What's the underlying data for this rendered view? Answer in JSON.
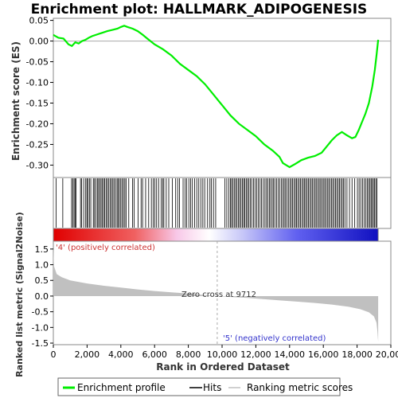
{
  "chart_data": {
    "type": "line",
    "title": "Enrichment plot: HALLMARK_ADIPOGENESIS",
    "colors": {
      "es_line": "#00ee00",
      "hits": "#000000",
      "metric_fill": "#c0c0c0",
      "positive": "#ff0000",
      "negative": "#0000ff",
      "neg_label": "#3333cc",
      "pos_label": "#cc3333"
    },
    "x_axis": {
      "label": "Rank in Ordered Dataset",
      "range": [
        0,
        20000
      ],
      "ticks": [
        0,
        2000,
        4000,
        6000,
        8000,
        10000,
        12000,
        14000,
        16000,
        18000,
        20000
      ],
      "tick_labels": [
        "0",
        "2,000",
        "4,000",
        "6,000",
        "8,000",
        "10,000",
        "12,000",
        "14,000",
        "16,000",
        "18,000",
        "20,000"
      ]
    },
    "es_panel": {
      "ylabel": "Enrichment score (ES)",
      "ylim": [
        -0.33,
        0.055
      ],
      "ticks": [
        0.05,
        0.0,
        -0.05,
        -0.1,
        -0.15,
        -0.2,
        -0.25,
        -0.3
      ],
      "tick_labels": [
        "0.05",
        "0.00",
        "-0.05",
        "-0.10",
        "-0.15",
        "-0.20",
        "-0.25",
        "-0.30"
      ],
      "series": [
        {
          "name": "Enrichment profile",
          "points": [
            [
              0,
              0.015
            ],
            [
              300,
              0.008
            ],
            [
              600,
              0.006
            ],
            [
              900,
              -0.008
            ],
            [
              1100,
              -0.012
            ],
            [
              1300,
              -0.003
            ],
            [
              1500,
              -0.006
            ],
            [
              1700,
              0.0
            ],
            [
              1900,
              0.003
            ],
            [
              2100,
              0.008
            ],
            [
              2300,
              0.012
            ],
            [
              2600,
              0.016
            ],
            [
              2900,
              0.02
            ],
            [
              3200,
              0.024
            ],
            [
              3500,
              0.027
            ],
            [
              3800,
              0.03
            ],
            [
              4000,
              0.034
            ],
            [
              4200,
              0.037
            ],
            [
              4400,
              0.034
            ],
            [
              4700,
              0.03
            ],
            [
              5000,
              0.024
            ],
            [
              5300,
              0.015
            ],
            [
              5600,
              0.005
            ],
            [
              6000,
              -0.008
            ],
            [
              6500,
              -0.02
            ],
            [
              7000,
              -0.035
            ],
            [
              7500,
              -0.055
            ],
            [
              8000,
              -0.07
            ],
            [
              8500,
              -0.085
            ],
            [
              9000,
              -0.105
            ],
            [
              9500,
              -0.13
            ],
            [
              10000,
              -0.155
            ],
            [
              10500,
              -0.18
            ],
            [
              11000,
              -0.2
            ],
            [
              11500,
              -0.215
            ],
            [
              12000,
              -0.23
            ],
            [
              12500,
              -0.25
            ],
            [
              13000,
              -0.265
            ],
            [
              13400,
              -0.28
            ],
            [
              13600,
              -0.295
            ],
            [
              13800,
              -0.3
            ],
            [
              14000,
              -0.305
            ],
            [
              14300,
              -0.298
            ],
            [
              14700,
              -0.288
            ],
            [
              15100,
              -0.282
            ],
            [
              15500,
              -0.278
            ],
            [
              15900,
              -0.27
            ],
            [
              16200,
              -0.255
            ],
            [
              16500,
              -0.24
            ],
            [
              16800,
              -0.228
            ],
            [
              17100,
              -0.22
            ],
            [
              17400,
              -0.228
            ],
            [
              17700,
              -0.235
            ],
            [
              17900,
              -0.232
            ],
            [
              18100,
              -0.215
            ],
            [
              18300,
              -0.195
            ],
            [
              18500,
              -0.175
            ],
            [
              18700,
              -0.15
            ],
            [
              18900,
              -0.11
            ],
            [
              19050,
              -0.07
            ],
            [
              19150,
              -0.035
            ],
            [
              19250,
              0.003
            ]
          ]
        }
      ]
    },
    "hits_panel": {
      "label": "Hits",
      "hit_ranks": [
        170,
        560,
        1080,
        1150,
        1230,
        1290,
        1350,
        1610,
        1680,
        1800,
        1920,
        1990,
        2050,
        2140,
        2220,
        2370,
        2440,
        2520,
        2610,
        2680,
        2750,
        2830,
        2900,
        2980,
        3050,
        3130,
        3210,
        3290,
        3380,
        3450,
        3530,
        3600,
        3690,
        3780,
        3850,
        3920,
        4000,
        4080,
        4160,
        4240,
        4310,
        4470,
        4690,
        4790,
        5020,
        5200,
        5290,
        5470,
        5650,
        5810,
        5920,
        6010,
        6120,
        6240,
        6390,
        6480,
        6550,
        6690,
        6840,
        7050,
        7250,
        7370,
        7480,
        7690,
        7810,
        7900,
        8030,
        8140,
        8240,
        8370,
        8500,
        8620,
        8740,
        8860,
        8970,
        9140,
        9280,
        9370,
        9490,
        9620,
        10170,
        10280,
        10400,
        10490,
        10560,
        10640,
        10720,
        10800,
        10880,
        10960,
        11040,
        11120,
        11200,
        11280,
        11350,
        11430,
        11510,
        11590,
        11670,
        11760,
        11860,
        11950,
        12050,
        12150,
        12250,
        12340,
        12440,
        12540,
        12630,
        12710,
        12800,
        12880,
        12970,
        13050,
        13130,
        13230,
        13330,
        13420,
        13520,
        13600,
        13680,
        13760,
        13840,
        13930,
        14020,
        14100,
        14180,
        14260,
        14340,
        14410,
        14490,
        14570,
        14650,
        14730,
        14810,
        14890,
        14960,
        15040,
        15120,
        15200,
        15280,
        15360,
        15440,
        15520,
        15600,
        15680,
        15760,
        15840,
        15920,
        16000,
        16080,
        16160,
        16240,
        16320,
        16400,
        16480,
        16560,
        16640,
        16720,
        16800,
        16880,
        16960,
        17040,
        17120,
        17200,
        17280,
        17400,
        17550,
        17700,
        17860,
        18020,
        18120,
        18220,
        18320,
        18420,
        18520,
        18600,
        18680,
        18760,
        18830,
        18900,
        18970,
        19040,
        19110,
        19180
      ]
    },
    "metric_panel": {
      "ylabel": "Ranked list metric (Signal2Noise)",
      "ylim": [
        -1.55,
        1.75
      ],
      "ticks": [
        1.5,
        1.0,
        0.5,
        0.0,
        -0.5,
        -1.0,
        -1.5
      ],
      "tick_labels": [
        "1.5",
        "1.0",
        "0.5",
        "0.0",
        "-0.5",
        "-1.0",
        "-1.5"
      ],
      "points": [
        [
          0,
          1.55
        ],
        [
          40,
          0.95
        ],
        [
          200,
          0.7
        ],
        [
          500,
          0.6
        ],
        [
          1000,
          0.5
        ],
        [
          2000,
          0.4
        ],
        [
          3000,
          0.33
        ],
        [
          4000,
          0.27
        ],
        [
          5000,
          0.21
        ],
        [
          6000,
          0.16
        ],
        [
          7000,
          0.12
        ],
        [
          8000,
          0.08
        ],
        [
          9000,
          0.03
        ],
        [
          9712,
          0.0
        ],
        [
          10500,
          -0.03
        ],
        [
          11500,
          -0.06
        ],
        [
          12500,
          -0.1
        ],
        [
          13500,
          -0.14
        ],
        [
          14500,
          -0.18
        ],
        [
          15500,
          -0.22
        ],
        [
          16500,
          -0.27
        ],
        [
          17500,
          -0.34
        ],
        [
          18200,
          -0.42
        ],
        [
          18700,
          -0.52
        ],
        [
          19000,
          -0.65
        ],
        [
          19150,
          -0.85
        ],
        [
          19200,
          -1.1
        ],
        [
          19250,
          -1.45
        ]
      ],
      "zero_cross_label": "Zero cross at 9712",
      "zero_cross_rank": 9712,
      "pos_label": "'4' (positively correlated)",
      "neg_label": "'5' (negatively correlated)"
    },
    "dataset_size": 19250,
    "legend": {
      "placement": "bottom",
      "items": [
        "Enrichment profile",
        "Hits",
        "Ranking metric scores"
      ]
    }
  }
}
